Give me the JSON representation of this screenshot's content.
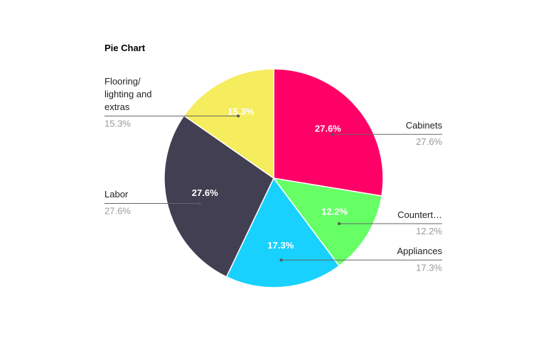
{
  "chart_data": {
    "type": "pie",
    "title": "Pie Chart",
    "categories": [
      "Cabinets",
      "Countert…",
      "Appliances",
      "Labor",
      "Flooring/ lighting and extras"
    ],
    "values": [
      27.6,
      12.2,
      17.3,
      27.6,
      15.3
    ],
    "value_labels": [
      "27.6%",
      "12.2%",
      "17.3%",
      "27.6%",
      "15.3%"
    ],
    "colors": [
      "#ff0066",
      "#66ff66",
      "#18d1ff",
      "#433f53",
      "#f5ec5e"
    ]
  }
}
